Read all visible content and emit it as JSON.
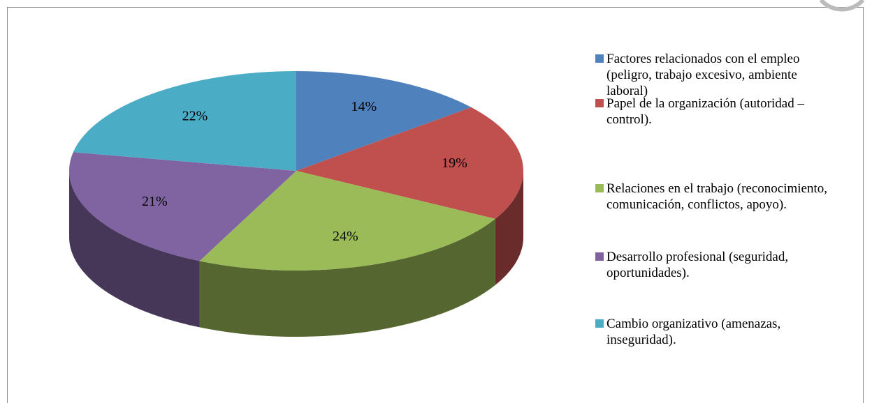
{
  "chart_data": {
    "type": "pie",
    "categories": [
      "Factores relacionados con el empleo (peligro, trabajo excesivo, ambiente laboral)",
      "Papel de la organización (autoridad – control).",
      "Relaciones en el trabajo (reconocimiento, comunicación, conflictos, apoyo).",
      "Desarrollo profesional (seguridad, oportunidades).",
      "Cambio organizativo (amenazas, inseguridad)."
    ],
    "values": [
      14,
      19,
      24,
      21,
      22
    ],
    "value_labels": [
      "14%",
      "19%",
      "24%",
      "21%",
      "22%"
    ],
    "colors": [
      "#4f81bd",
      "#c0504d",
      "#9bbb59",
      "#8064a2",
      "#4bacc6"
    ],
    "legend": "right"
  }
}
